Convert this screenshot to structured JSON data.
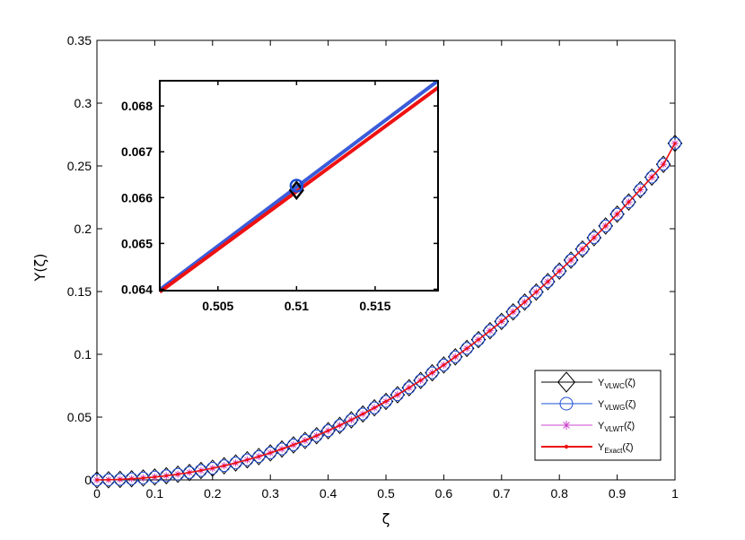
{
  "chart_data": [
    {
      "type": "line",
      "xlabel": "ζ",
      "ylabel": "Y(ζ)",
      "xlim": [
        0,
        1
      ],
      "ylim": [
        0,
        0.35
      ],
      "xticks": [
        0,
        0.1,
        0.2,
        0.3,
        0.4,
        0.5,
        0.6,
        0.7,
        0.8,
        0.9,
        1
      ],
      "xtick_labels": [
        "0",
        "0.1",
        "0.2",
        "0.3",
        "0.4",
        "0.5",
        "0.6",
        "0.7",
        "0.8",
        "0.9",
        "1"
      ],
      "yticks": [
        0,
        0.05,
        0.1,
        0.15,
        0.2,
        0.25,
        0.3,
        0.35
      ],
      "ytick_labels": [
        "0",
        "0.05",
        "0.1",
        "0.15",
        "0.2",
        "0.25",
        "0.3",
        "0.35"
      ],
      "grid": false,
      "legend_position": "bottom-right",
      "x": [
        0,
        0.02,
        0.04,
        0.06,
        0.08,
        0.1,
        0.12,
        0.14,
        0.16,
        0.18,
        0.2,
        0.22,
        0.24,
        0.26,
        0.28,
        0.3,
        0.32,
        0.34,
        0.36,
        0.38,
        0.4,
        0.42,
        0.44,
        0.46,
        0.48,
        0.5,
        0.52,
        0.54,
        0.56,
        0.58,
        0.6,
        0.62,
        0.64,
        0.66,
        0.68,
        0.7,
        0.72,
        0.74,
        0.76,
        0.78,
        0.8,
        0.82,
        0.84,
        0.86,
        0.88,
        0.9,
        0.92,
        0.94,
        0.96,
        0.98,
        1.0
      ],
      "series": [
        {
          "name": "VLWC",
          "color": "#000000",
          "marker": "diamond",
          "values": [
            0,
            0.0001,
            0.0004,
            0.0009,
            0.0015,
            0.0023,
            0.0033,
            0.0045,
            0.0059,
            0.0075,
            0.0093,
            0.0113,
            0.0135,
            0.016,
            0.0186,
            0.0215,
            0.0246,
            0.0279,
            0.0314,
            0.0352,
            0.0392,
            0.0434,
            0.0478,
            0.0525,
            0.0574,
            0.0625,
            0.0678,
            0.0734,
            0.0792,
            0.0853,
            0.0915,
            0.098,
            0.1047,
            0.1117,
            0.1188,
            0.1262,
            0.1338,
            0.1416,
            0.1496,
            0.1579,
            0.1663,
            0.175,
            0.1838,
            0.1929,
            0.2022,
            0.2116,
            0.2213,
            0.2311,
            0.2411,
            0.2513,
            0.268
          ]
        },
        {
          "name": "VLWG",
          "color": "#1f4fd6",
          "marker": "circle",
          "values": [
            0,
            0.0001,
            0.0004,
            0.0009,
            0.0015,
            0.0023,
            0.0033,
            0.0045,
            0.0059,
            0.0075,
            0.0093,
            0.0113,
            0.0135,
            0.016,
            0.0186,
            0.0215,
            0.0246,
            0.0279,
            0.0314,
            0.0352,
            0.0392,
            0.0434,
            0.0478,
            0.0525,
            0.0574,
            0.0625,
            0.0678,
            0.0734,
            0.0792,
            0.0853,
            0.0915,
            0.098,
            0.1047,
            0.1117,
            0.1188,
            0.1262,
            0.1338,
            0.1416,
            0.1496,
            0.1579,
            0.1663,
            0.175,
            0.1838,
            0.1929,
            0.2022,
            0.2116,
            0.2213,
            0.2311,
            0.2411,
            0.2513,
            0.268
          ]
        },
        {
          "name": "VLWT",
          "color": "#cc44cc",
          "marker": "star",
          "values": [
            0,
            0.0001,
            0.0004,
            0.0009,
            0.0015,
            0.0023,
            0.0033,
            0.0045,
            0.0059,
            0.0075,
            0.0093,
            0.0113,
            0.0135,
            0.016,
            0.0186,
            0.0215,
            0.0246,
            0.0279,
            0.0314,
            0.0352,
            0.0392,
            0.0434,
            0.0478,
            0.0525,
            0.0574,
            0.0625,
            0.0678,
            0.0734,
            0.0792,
            0.0853,
            0.0915,
            0.098,
            0.1047,
            0.1117,
            0.1188,
            0.1262,
            0.1338,
            0.1416,
            0.1496,
            0.1579,
            0.1663,
            0.175,
            0.1838,
            0.1929,
            0.2022,
            0.2116,
            0.2213,
            0.2311,
            0.2411,
            0.2513,
            0.268
          ]
        },
        {
          "name": "Exact",
          "color": "#ee1111",
          "marker": "dot",
          "values": [
            0,
            0.0001,
            0.0004,
            0.0009,
            0.0015,
            0.0023,
            0.0033,
            0.0045,
            0.0059,
            0.0075,
            0.0093,
            0.0113,
            0.0135,
            0.016,
            0.0186,
            0.0215,
            0.0246,
            0.0279,
            0.0314,
            0.0352,
            0.0392,
            0.0434,
            0.0478,
            0.0525,
            0.0574,
            0.0625,
            0.0678,
            0.0734,
            0.0792,
            0.0853,
            0.0915,
            0.098,
            0.1047,
            0.1117,
            0.1188,
            0.1262,
            0.1338,
            0.1416,
            0.1496,
            0.1579,
            0.1663,
            0.175,
            0.1838,
            0.1929,
            0.2022,
            0.2116,
            0.2213,
            0.2311,
            0.2411,
            0.2513,
            0.268
          ]
        }
      ],
      "legend": [
        {
          "prefix": "Y",
          "sub": "VLWC",
          "suffix": "(ζ)"
        },
        {
          "prefix": "Y",
          "sub": "VLWG",
          "suffix": "(ζ)"
        },
        {
          "prefix": "Y",
          "sub": "VLWT",
          "suffix": "(ζ)"
        },
        {
          "prefix": "Y",
          "sub": "Exact",
          "suffix": "(ζ)"
        }
      ]
    },
    {
      "type": "line",
      "role": "inset-zoom",
      "xlim": [
        0.5013,
        0.519
      ],
      "ylim": [
        0.06397,
        0.06855
      ],
      "xticks": [
        0.505,
        0.51,
        0.515
      ],
      "xtick_labels": [
        "0.505",
        "0.51",
        "0.515"
      ],
      "yticks": [
        0.064,
        0.065,
        0.066,
        0.067,
        0.068
      ],
      "ytick_labels": [
        "0.064",
        "0.065",
        "0.066",
        "0.067",
        "0.068"
      ],
      "lines": [
        {
          "name": "VLWG",
          "color": "#3a5bd9",
          "x": [
            0.5013,
            0.519
          ],
          "y": [
            0.06399,
            0.06855
          ]
        },
        {
          "name": "Exact",
          "color": "#ee1111",
          "x": [
            0.5013,
            0.519
          ],
          "y": [
            0.06394,
            0.0684
          ]
        }
      ],
      "markers": [
        {
          "name": "VLWC",
          "marker": "diamond",
          "x": 0.51,
          "y": 0.06616
        },
        {
          "name": "VLWG",
          "marker": "circle",
          "x": 0.51,
          "y": 0.06626
        }
      ]
    }
  ]
}
